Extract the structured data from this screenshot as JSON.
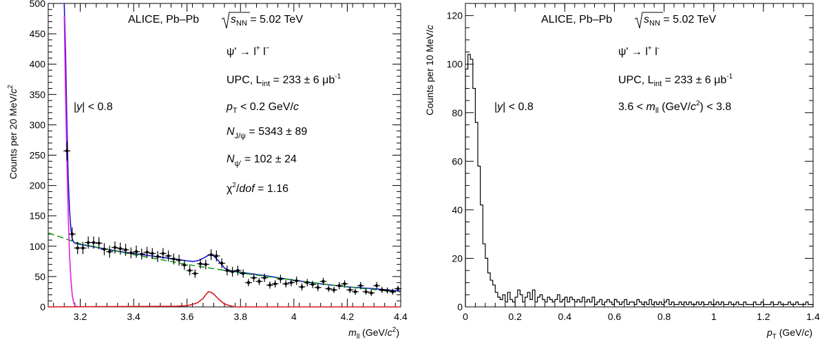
{
  "chart_data": [
    {
      "type": "scatter",
      "xlabel": "m",
      "xlabel_sub": "ll",
      "xlabel_unit_pre": " (GeV/",
      "xlabel_unit_var": "c",
      "xlabel_unit_sup": "2",
      "xlabel_unit_post": ")",
      "ylabel": "Counts per 20 MeV/",
      "ylabel_var": "c",
      "ylabel_sup": "2",
      "xlim": [
        3.08,
        4.4
      ],
      "ylim": [
        0,
        500
      ],
      "xticks": [
        3.2,
        3.4,
        3.6,
        3.8,
        4,
        4.2,
        4.4
      ],
      "xtick_labels": [
        "3.2",
        "3.4",
        "3.6",
        "3.8",
        "4",
        "4.2",
        "4.4"
      ],
      "yticks": [
        0,
        50,
        100,
        150,
        200,
        250,
        300,
        350,
        400,
        450,
        500
      ],
      "ytick_labels": [
        "0",
        "50",
        "100",
        "150",
        "200",
        "250",
        "300",
        "350",
        "400",
        "450",
        "500"
      ],
      "annotations": {
        "system": "ALICE, Pb–Pb",
        "sqrt": "s",
        "sqrt_sub": "NN",
        "energy": " = 5.02 TeV",
        "decay": "ψ' → l",
        "decay_sup1": "+",
        "decay_mid": " l",
        "decay_sup2": "−",
        "upc": "UPC, L",
        "upc_sub": "int",
        "upc_val": " = 233 ± 6 μb",
        "upc_sup": "-1",
        "rap_bar": "|",
        "rap_var": "y",
        "rap_rest": "| < 0.8",
        "pt_var": "p",
        "pt_sub": "T",
        "pt_rest": " < 0.2 GeV/",
        "pt_c": "c",
        "njpsi_var": "N",
        "njpsi_sub": "J/ψ",
        "njpsi_rest": " = 5343 ± 89",
        "npsi_var": "N",
        "npsi_sub": "ψ'",
        "npsi_rest": " = 102 ± 24",
        "chi_pre": "χ",
        "chi_sup": "2",
        "chi_slash": "/",
        "chi_var": "dof",
        "chi_rest": " = 1.16"
      },
      "series": [
        {
          "style": "points with error bars",
          "color": "#000000",
          "x": [
            3.15,
            3.17,
            3.19,
            3.21,
            3.23,
            3.25,
            3.27,
            3.29,
            3.31,
            3.33,
            3.35,
            3.37,
            3.39,
            3.41,
            3.43,
            3.45,
            3.47,
            3.49,
            3.51,
            3.53,
            3.55,
            3.57,
            3.59,
            3.61,
            3.63,
            3.65,
            3.67,
            3.69,
            3.71,
            3.73,
            3.75,
            3.77,
            3.79,
            3.81,
            3.83,
            3.85,
            3.87,
            3.89,
            3.91,
            3.93,
            3.95,
            3.97,
            3.99,
            4.01,
            4.03,
            4.05,
            4.07,
            4.09,
            4.11,
            4.13,
            4.15,
            4.17,
            4.19,
            4.21,
            4.23,
            4.25,
            4.27,
            4.29,
            4.31,
            4.33,
            4.35,
            4.37,
            4.39
          ],
          "y": [
            257,
            120,
            97,
            97,
            106,
            106,
            105,
            95,
            91,
            98,
            96,
            94,
            89,
            91,
            87,
            90,
            88,
            83,
            88,
            84,
            79,
            77,
            69,
            60,
            55,
            71,
            70,
            86,
            84,
            72,
            60,
            58,
            60,
            55,
            40,
            48,
            42,
            48,
            36,
            38,
            46,
            38,
            40,
            43,
            33,
            40,
            37,
            32,
            42,
            30,
            28,
            35,
            38,
            28,
            25,
            35,
            25,
            23,
            35,
            28,
            27,
            25,
            30
          ],
          "yerr": [
            16,
            11,
            10,
            10,
            10,
            10,
            10,
            10,
            10,
            10,
            10,
            10,
            9,
            10,
            9,
            9,
            9,
            9,
            9,
            9,
            9,
            9,
            8,
            8,
            7,
            8,
            8,
            9,
            9,
            8,
            8,
            8,
            8,
            7,
            6,
            7,
            6,
            7,
            6,
            6,
            7,
            6,
            6,
            7,
            6,
            6,
            6,
            6,
            6,
            5,
            5,
            6,
            6,
            5,
            5,
            6,
            5,
            5,
            6,
            5,
            5,
            5,
            5
          ]
        },
        {
          "style": "solid line",
          "color": "#1515cc",
          "x": [
            3.14,
            3.145,
            3.15,
            3.155,
            3.16,
            3.165,
            3.17,
            3.175,
            3.18,
            3.2,
            3.25,
            3.3,
            3.35,
            3.4,
            3.45,
            3.5,
            3.55,
            3.6,
            3.62,
            3.64,
            3.66,
            3.68,
            3.69,
            3.7,
            3.72,
            3.74,
            3.76,
            3.8,
            3.9,
            4,
            4.1,
            4.2,
            4.3,
            4.4
          ],
          "y": [
            500,
            420,
            300,
            210,
            160,
            128,
            112,
            107,
            105,
            103,
            99,
            95,
            91,
            88,
            85,
            82,
            79,
            76,
            75,
            76,
            80,
            85,
            86,
            84,
            75,
            64,
            60,
            57,
            51,
            44,
            38,
            33,
            30,
            26
          ]
        },
        {
          "style": "dashed line",
          "color": "#1a9c1a",
          "x": [
            3.08,
            3.2,
            3.4,
            3.6,
            3.8,
            4,
            4.2,
            4.4
          ],
          "y": [
            122,
            104,
            86,
            70,
            56,
            44,
            33,
            24
          ]
        },
        {
          "style": "solid line",
          "color": "#e31be3",
          "x": [
            3.14,
            3.145,
            3.15,
            3.155,
            3.16,
            3.165,
            3.17,
            3.175,
            3.18,
            3.19
          ],
          "y": [
            480,
            350,
            240,
            150,
            85,
            45,
            20,
            8,
            2,
            0
          ]
        },
        {
          "style": "solid line",
          "color": "#d81818",
          "x": [
            3.08,
            3.56,
            3.6,
            3.62,
            3.64,
            3.66,
            3.67,
            3.68,
            3.69,
            3.7,
            3.72,
            3.74,
            3.76,
            3.78,
            4.4
          ],
          "y": [
            0,
            1,
            2,
            4,
            7,
            14,
            20,
            25,
            24,
            21,
            12,
            5,
            2,
            0,
            0
          ]
        }
      ]
    },
    {
      "type": "bar",
      "style": "step histogram",
      "xlabel_var": "p",
      "xlabel_sub": "T",
      "xlabel_unit_pre": " (GeV/",
      "xlabel_unit_var": "c",
      "xlabel_unit_post": ")",
      "ylabel": "Counts per 10 MeV/",
      "ylabel_var": "c",
      "xlim": [
        0,
        1.4
      ],
      "ylim": [
        0,
        125
      ],
      "xticks": [
        0,
        0.2,
        0.4,
        0.6,
        0.8,
        1,
        1.2,
        1.4
      ],
      "xtick_labels": [
        "0",
        "0.2",
        "0.4",
        "0.6",
        "0.8",
        "1",
        "1.2",
        "1.4"
      ],
      "yticks": [
        0,
        20,
        40,
        60,
        80,
        100,
        120
      ],
      "ytick_labels": [
        "0",
        "20",
        "40",
        "60",
        "80",
        "100",
        "120"
      ],
      "annotations": {
        "system": "ALICE, Pb–Pb",
        "sqrt": "s",
        "sqrt_sub": "NN",
        "energy": " = 5.02 TeV",
        "decay": "ψ' → l",
        "decay_sup1": "+",
        "decay_mid": " l",
        "decay_sup2": "-",
        "upc": "UPC, L",
        "upc_sub": "int",
        "upc_val": " = 233 ± 6 μb",
        "upc_sup": "-1",
        "rap_bar": "|",
        "rap_var": "y",
        "rap_rest": "| < 0.8",
        "mass_pre": "3.6 < ",
        "mass_var": "m",
        "mass_sub": "ll",
        "mass_mid": " (GeV/",
        "mass_c": "c",
        "mass_sup": "2",
        "mass_post": ") < 3.8"
      },
      "bin_width": 0.01,
      "values": [
        98,
        104,
        102,
        90,
        76,
        58,
        42,
        26,
        20,
        14,
        11,
        9,
        6,
        4,
        3,
        5,
        2,
        6,
        3,
        2,
        4,
        7,
        5,
        2,
        4,
        6,
        3,
        7,
        2,
        4,
        5,
        3,
        2,
        4,
        3,
        2,
        3,
        5,
        2,
        3,
        4,
        2,
        4,
        3,
        2,
        3,
        2,
        4,
        2,
        3,
        2,
        4,
        1,
        2,
        3,
        1,
        2,
        3,
        2,
        1,
        3,
        2,
        1,
        2,
        3,
        1,
        2,
        2,
        1,
        3,
        2,
        1,
        2,
        1,
        3,
        1,
        2,
        1,
        2,
        1,
        2,
        3,
        1,
        2,
        1,
        1,
        2,
        1,
        2,
        1,
        2,
        1,
        1,
        2,
        1,
        2,
        1,
        1,
        2,
        1,
        1,
        2,
        1,
        2,
        1,
        1,
        2,
        1,
        1,
        2,
        1,
        1,
        2,
        1,
        1,
        1,
        2,
        1,
        1,
        2,
        1,
        1,
        1,
        2,
        1,
        1,
        2,
        1,
        1,
        1,
        2,
        1,
        1,
        2,
        1,
        1,
        1,
        2,
        1,
        1
      ],
      "color": "#000000"
    }
  ]
}
